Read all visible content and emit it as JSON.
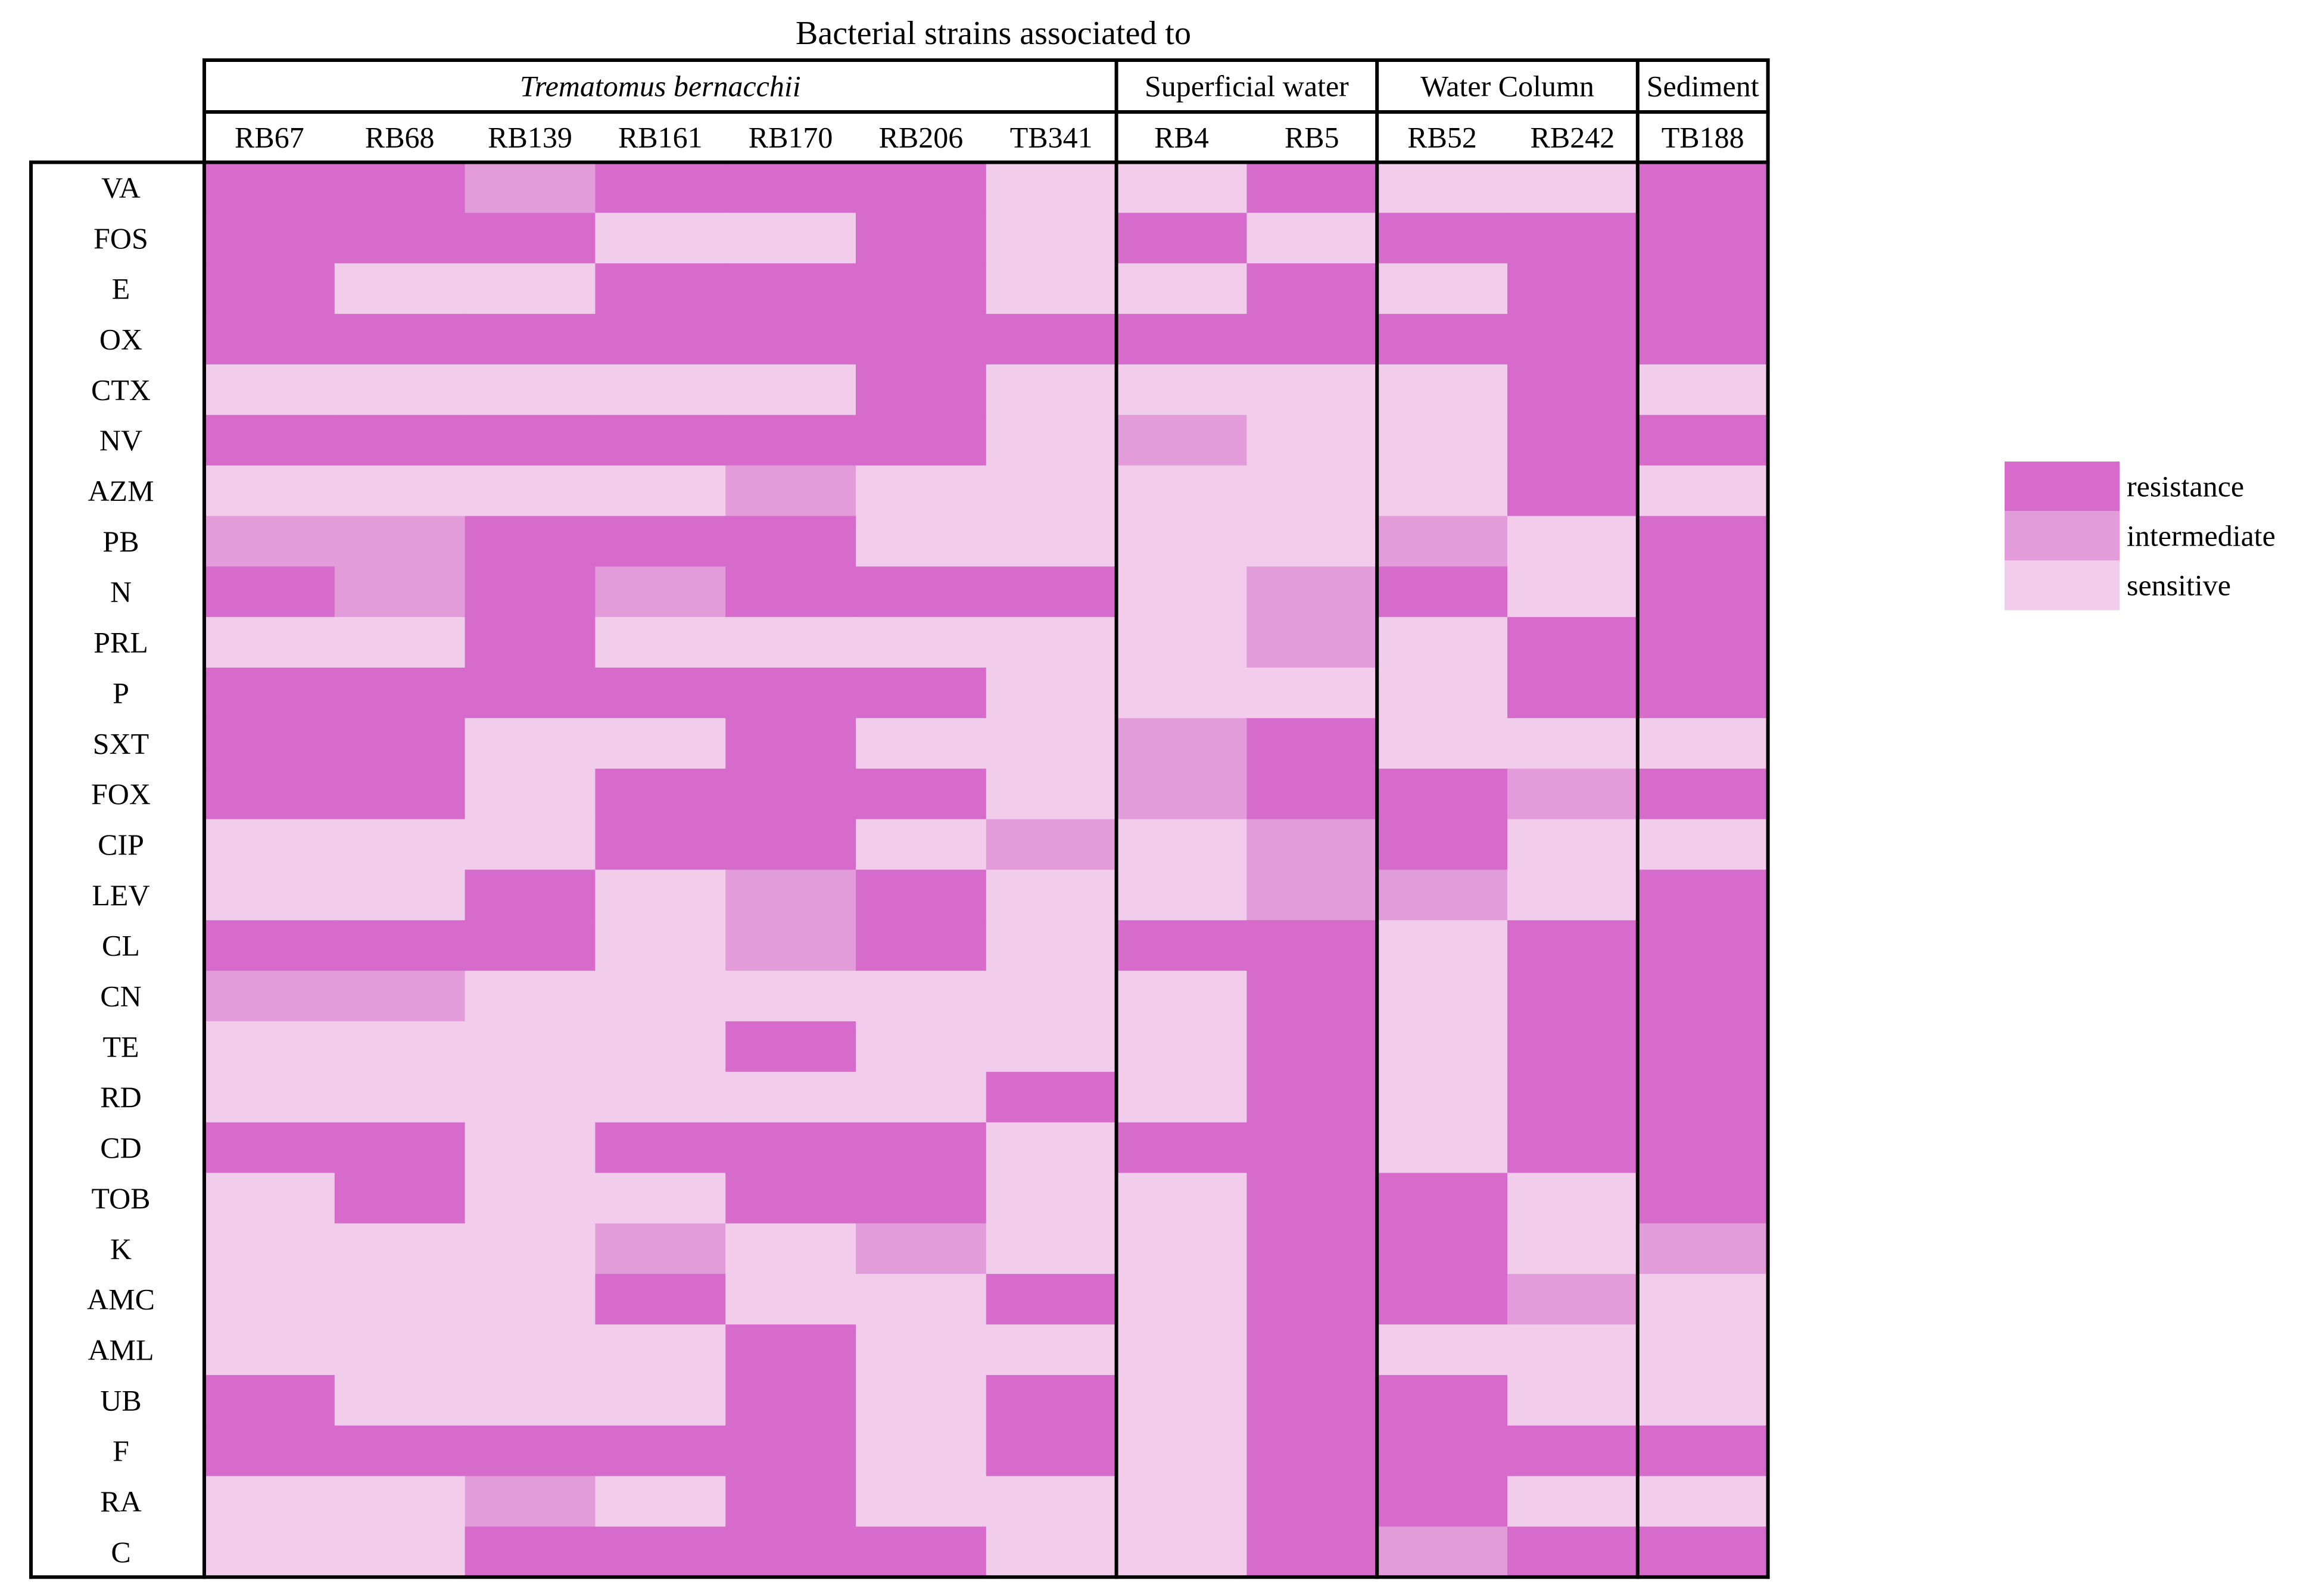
{
  "chart_data": {
    "type": "heatmap",
    "title": "Bacterial strains associated to",
    "groups": [
      {
        "name": "Trematomus bernacchii",
        "italic": true,
        "strains": [
          "RB67",
          "RB68",
          "RB139",
          "RB161",
          "RB170",
          "RB206",
          "TB341"
        ]
      },
      {
        "name": "Superficial water",
        "italic": false,
        "strains": [
          "RB4",
          "RB5"
        ]
      },
      {
        "name": "Water Column",
        "italic": false,
        "strains": [
          "RB52",
          "RB242"
        ]
      },
      {
        "name": "Sediment",
        "italic": false,
        "strains": [
          "TB188"
        ]
      }
    ],
    "columns": [
      "RB67",
      "RB68",
      "RB139",
      "RB161",
      "RB170",
      "RB206",
      "TB341",
      "RB4",
      "RB5",
      "RB52",
      "RB242",
      "TB188"
    ],
    "rows": [
      "VA",
      "FOS",
      "E",
      "OX",
      "CTX",
      "NV",
      "AZM",
      "PB",
      "N",
      "PRL",
      "P",
      "SXT",
      "FOX",
      "CIP",
      "LEV",
      "CL",
      "CN",
      "TE",
      "RD",
      "CD",
      "TOB",
      "K",
      "AMC",
      "AML",
      "UB",
      "F",
      "RA",
      "C"
    ],
    "values": [
      [
        "R",
        "R",
        "I",
        "R",
        "R",
        "R",
        "S",
        "S",
        "R",
        "S",
        "S",
        "R"
      ],
      [
        "R",
        "R",
        "R",
        "S",
        "S",
        "R",
        "S",
        "R",
        "S",
        "R",
        "R",
        "R"
      ],
      [
        "R",
        "S",
        "S",
        "R",
        "R",
        "R",
        "S",
        "S",
        "R",
        "S",
        "R",
        "R"
      ],
      [
        "R",
        "R",
        "R",
        "R",
        "R",
        "R",
        "R",
        "R",
        "R",
        "R",
        "R",
        "R"
      ],
      [
        "S",
        "S",
        "S",
        "S",
        "S",
        "R",
        "S",
        "S",
        "S",
        "S",
        "R",
        "S"
      ],
      [
        "R",
        "R",
        "R",
        "R",
        "R",
        "R",
        "S",
        "I",
        "S",
        "S",
        "R",
        "R"
      ],
      [
        "S",
        "S",
        "S",
        "S",
        "I",
        "S",
        "S",
        "S",
        "S",
        "S",
        "R",
        "S"
      ],
      [
        "I",
        "I",
        "R",
        "R",
        "R",
        "S",
        "S",
        "S",
        "S",
        "I",
        "S",
        "R"
      ],
      [
        "R",
        "I",
        "R",
        "I",
        "R",
        "R",
        "R",
        "S",
        "I",
        "R",
        "S",
        "R"
      ],
      [
        "S",
        "S",
        "R",
        "S",
        "S",
        "S",
        "S",
        "S",
        "I",
        "S",
        "R",
        "R"
      ],
      [
        "R",
        "R",
        "R",
        "R",
        "R",
        "R",
        "S",
        "S",
        "S",
        "S",
        "R",
        "R"
      ],
      [
        "R",
        "R",
        "S",
        "S",
        "R",
        "S",
        "S",
        "I",
        "R",
        "S",
        "S",
        "S"
      ],
      [
        "R",
        "R",
        "S",
        "R",
        "R",
        "R",
        "S",
        "I",
        "R",
        "R",
        "I",
        "R"
      ],
      [
        "S",
        "S",
        "S",
        "R",
        "R",
        "S",
        "I",
        "S",
        "I",
        "R",
        "S",
        "S"
      ],
      [
        "S",
        "S",
        "R",
        "S",
        "I",
        "R",
        "S",
        "S",
        "I",
        "I",
        "S",
        "R"
      ],
      [
        "R",
        "R",
        "R",
        "S",
        "I",
        "R",
        "S",
        "R",
        "R",
        "S",
        "R",
        "R"
      ],
      [
        "I",
        "I",
        "S",
        "S",
        "S",
        "S",
        "S",
        "S",
        "R",
        "S",
        "R",
        "R"
      ],
      [
        "S",
        "S",
        "S",
        "S",
        "R",
        "S",
        "S",
        "S",
        "R",
        "S",
        "R",
        "R"
      ],
      [
        "S",
        "S",
        "S",
        "S",
        "S",
        "S",
        "R",
        "S",
        "R",
        "S",
        "R",
        "R"
      ],
      [
        "R",
        "R",
        "S",
        "R",
        "R",
        "R",
        "S",
        "R",
        "R",
        "S",
        "R",
        "R"
      ],
      [
        "S",
        "R",
        "S",
        "S",
        "R",
        "R",
        "S",
        "S",
        "R",
        "R",
        "S",
        "R"
      ],
      [
        "S",
        "S",
        "S",
        "I",
        "S",
        "I",
        "S",
        "S",
        "R",
        "R",
        "S",
        "I"
      ],
      [
        "S",
        "S",
        "S",
        "R",
        "S",
        "S",
        "R",
        "S",
        "R",
        "R",
        "I",
        "S"
      ],
      [
        "S",
        "S",
        "S",
        "S",
        "R",
        "S",
        "S",
        "S",
        "R",
        "S",
        "S",
        "S"
      ],
      [
        "R",
        "S",
        "S",
        "S",
        "R",
        "S",
        "R",
        "S",
        "R",
        "R",
        "S",
        "S"
      ],
      [
        "R",
        "R",
        "R",
        "R",
        "R",
        "S",
        "R",
        "S",
        "R",
        "R",
        "R",
        "R"
      ],
      [
        "S",
        "S",
        "I",
        "S",
        "R",
        "S",
        "S",
        "S",
        "R",
        "R",
        "S",
        "S"
      ],
      [
        "S",
        "S",
        "R",
        "R",
        "R",
        "R",
        "S",
        "S",
        "R",
        "I",
        "R",
        "R"
      ]
    ],
    "legend": {
      "placement": "right",
      "items": [
        {
          "key": "R",
          "label": "resistance",
          "color": "#d66bcb"
        },
        {
          "key": "I",
          "label": "intermediate",
          "color": "#e29cd9"
        },
        {
          "key": "S",
          "label": "sensitive",
          "color": "#f1cdeb"
        }
      ]
    },
    "grid": false
  }
}
